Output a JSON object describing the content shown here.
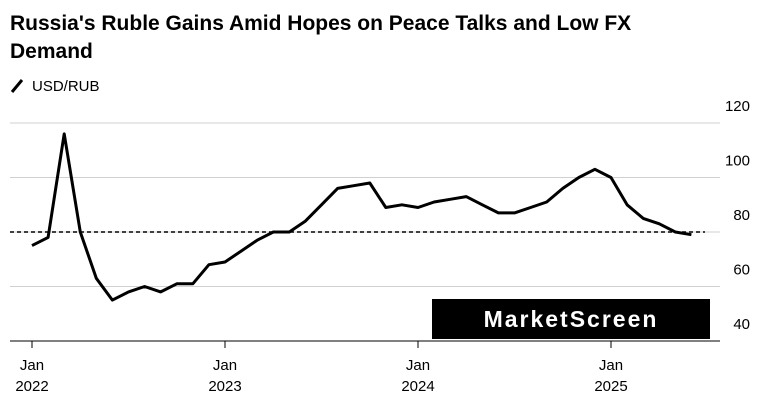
{
  "chart_data": {
    "type": "line",
    "title": "Russia's Ruble Gains Amid Hopes on Peace Talks and Low FX Demand",
    "title_lines": [
      "Russia's Ruble Gains Amid Hopes on Peace Talks and Low FX",
      "Demand"
    ],
    "watermark": "MarketScreen",
    "x": [
      "2022-01",
      "2022-02",
      "2022-03",
      "2022-04",
      "2022-05",
      "2022-06",
      "2022-07",
      "2022-08",
      "2022-09",
      "2022-10",
      "2022-11",
      "2022-12",
      "2023-01",
      "2023-02",
      "2023-03",
      "2023-04",
      "2023-05",
      "2023-06",
      "2023-07",
      "2023-08",
      "2023-09",
      "2023-10",
      "2023-11",
      "2023-12",
      "2024-01",
      "2024-02",
      "2024-03",
      "2024-04",
      "2024-05",
      "2024-06",
      "2024-07",
      "2024-08",
      "2024-09",
      "2024-10",
      "2024-11",
      "2024-12",
      "2025-01",
      "2025-02",
      "2025-03",
      "2025-04",
      "2025-05",
      "2025-06"
    ],
    "series": [
      {
        "name": "USD/RUB",
        "color": "#000000",
        "values": [
          75,
          78,
          116,
          80,
          63,
          55,
          58,
          60,
          58,
          61,
          61,
          68,
          69,
          73,
          77,
          80,
          80,
          84,
          90,
          96,
          97,
          98,
          89,
          90,
          89,
          91,
          92,
          93,
          90,
          87,
          87,
          89,
          91,
          96,
          100,
          103,
          100,
          90,
          85,
          83,
          80,
          79
        ]
      }
    ],
    "reference_line": 80,
    "xlim": [
      "2022-01",
      "2025-06"
    ],
    "xticks": [
      {
        "value": "2022-01",
        "label": [
          "Jan",
          "2022"
        ]
      },
      {
        "value": "2023-01",
        "label": [
          "Jan",
          "2023"
        ]
      },
      {
        "value": "2024-01",
        "label": [
          "Jan",
          "2024"
        ]
      },
      {
        "value": "2025-01",
        "label": [
          "Jan",
          "2025"
        ]
      }
    ],
    "ylim": [
      40,
      120
    ],
    "yticks": [
      40,
      60,
      80,
      100,
      120
    ],
    "grid": true
  }
}
